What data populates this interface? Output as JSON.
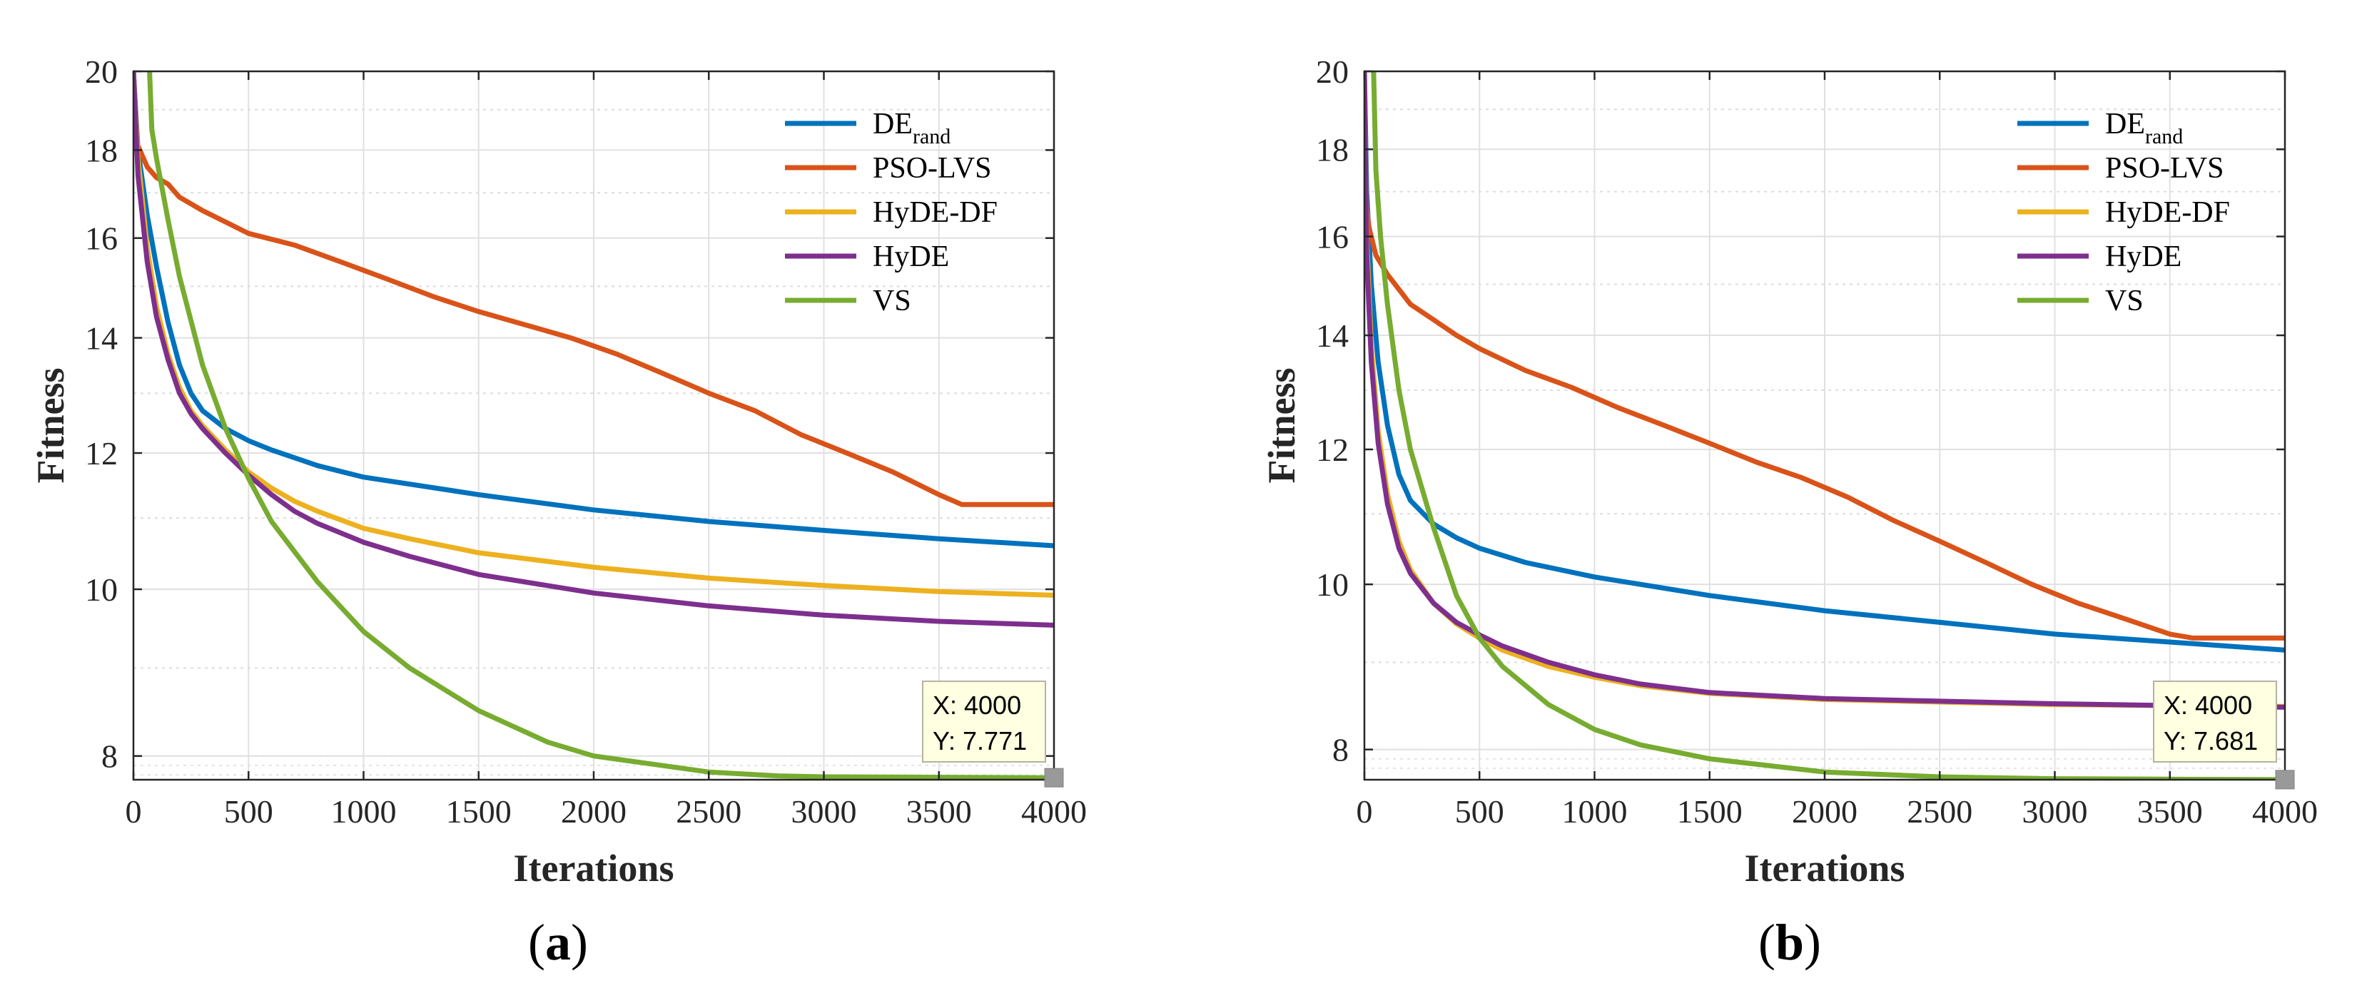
{
  "chart_data": [
    {
      "type": "line",
      "caption": {
        "open": "(",
        "letter": "a",
        "close": ")"
      },
      "xlabel": "Iterations",
      "ylabel": "Fitness",
      "xlim": [
        0,
        4000
      ],
      "ylim": [
        7.75,
        20
      ],
      "yscale": "log",
      "grid": true,
      "legend_position": "top-right",
      "xticks": [
        0,
        500,
        1000,
        1500,
        2000,
        2500,
        3000,
        3500,
        4000
      ],
      "yticks": [
        8,
        10,
        12,
        14,
        16,
        18,
        20
      ],
      "series": [
        {
          "name": "DE",
          "name_sub": "rand",
          "color": "#0072BD",
          "x": [
            0,
            20,
            60,
            100,
            150,
            200,
            250,
            300,
            400,
            500,
            600,
            800,
            1000,
            1500,
            2000,
            2500,
            3000,
            3500,
            4000
          ],
          "y": [
            20,
            18.0,
            16.5,
            15.4,
            14.3,
            13.5,
            13.0,
            12.7,
            12.4,
            12.2,
            12.05,
            11.8,
            11.62,
            11.35,
            11.12,
            10.95,
            10.82,
            10.7,
            10.6
          ]
        },
        {
          "name": "PSO-LVS",
          "color": "#D95319",
          "x": [
            0,
            20,
            60,
            100,
            150,
            200,
            300,
            400,
            500,
            700,
            900,
            1100,
            1300,
            1500,
            1700,
            1900,
            2100,
            2300,
            2500,
            2700,
            2900,
            3100,
            3300,
            3500,
            3600,
            4000
          ],
          "y": [
            18.6,
            18.1,
            17.6,
            17.35,
            17.2,
            16.9,
            16.6,
            16.35,
            16.1,
            15.85,
            15.5,
            15.15,
            14.8,
            14.5,
            14.25,
            14.0,
            13.7,
            13.35,
            13.0,
            12.7,
            12.3,
            12.0,
            11.7,
            11.35,
            11.2,
            11.2
          ]
        },
        {
          "name": "HyDE-DF",
          "color": "#EDB120",
          "x": [
            0,
            20,
            60,
            100,
            150,
            200,
            250,
            300,
            400,
            500,
            600,
            700,
            800,
            1000,
            1200,
            1500,
            2000,
            2500,
            3000,
            3500,
            4000
          ],
          "y": [
            20,
            17.8,
            15.8,
            14.6,
            13.7,
            13.1,
            12.7,
            12.45,
            12.05,
            11.7,
            11.45,
            11.25,
            11.1,
            10.85,
            10.7,
            10.5,
            10.3,
            10.15,
            10.05,
            9.97,
            9.92
          ]
        },
        {
          "name": "HyDE",
          "color": "#7E2F8E",
          "x": [
            0,
            20,
            60,
            100,
            150,
            200,
            250,
            300,
            400,
            500,
            600,
            700,
            800,
            1000,
            1200,
            1500,
            2000,
            2500,
            3000,
            3500,
            4000
          ],
          "y": [
            20,
            17.4,
            15.5,
            14.4,
            13.6,
            13.0,
            12.65,
            12.4,
            12.0,
            11.65,
            11.35,
            11.1,
            10.92,
            10.65,
            10.45,
            10.2,
            9.95,
            9.78,
            9.66,
            9.58,
            9.53
          ]
        },
        {
          "name": "VS",
          "color": "#77AC30",
          "x": [
            70,
            80,
            100,
            150,
            200,
            300,
            400,
            500,
            600,
            800,
            1000,
            1200,
            1500,
            1800,
            2000,
            2500,
            2800,
            3000,
            3500,
            4000
          ],
          "y": [
            20,
            18.5,
            17.8,
            16.4,
            15.2,
            13.5,
            12.4,
            11.6,
            10.95,
            10.1,
            9.45,
            9.0,
            8.5,
            8.15,
            8.0,
            7.83,
            7.79,
            7.78,
            7.775,
            7.771
          ]
        }
      ],
      "datatip": {
        "x_label": "X: 4000",
        "y_label": "Y: 7.771",
        "x": 4000,
        "y": 7.771
      }
    },
    {
      "type": "line",
      "caption": {
        "open": "(",
        "letter": "b",
        "close": ")"
      },
      "xlabel": "Iterations",
      "ylabel": "Fitness",
      "xlim": [
        0,
        4000
      ],
      "ylim": [
        7.68,
        20
      ],
      "yscale": "log",
      "grid": true,
      "legend_position": "top-right",
      "xticks": [
        0,
        500,
        1000,
        1500,
        2000,
        2500,
        3000,
        3500,
        4000
      ],
      "yticks": [
        8,
        10,
        12,
        14,
        16,
        18,
        20
      ],
      "series": [
        {
          "name": "DE",
          "name_sub": "rand",
          "color": "#0072BD",
          "x": [
            0,
            10,
            30,
            60,
            100,
            150,
            200,
            300,
            400,
            500,
            700,
            1000,
            1500,
            2000,
            2500,
            3000,
            3500,
            4000
          ],
          "y": [
            20,
            17.0,
            15.0,
            13.5,
            12.4,
            11.6,
            11.2,
            10.85,
            10.65,
            10.5,
            10.3,
            10.1,
            9.85,
            9.65,
            9.5,
            9.35,
            9.25,
            9.15
          ]
        },
        {
          "name": "PSO-LVS",
          "color": "#D95319",
          "x": [
            0,
            20,
            50,
            100,
            200,
            300,
            400,
            500,
            700,
            900,
            1100,
            1300,
            1500,
            1700,
            1900,
            2100,
            2300,
            2500,
            2700,
            2900,
            3100,
            3300,
            3500,
            3600,
            4000
          ],
          "y": [
            17.0,
            16.2,
            15.6,
            15.2,
            14.6,
            14.3,
            14.0,
            13.75,
            13.35,
            13.05,
            12.7,
            12.4,
            12.1,
            11.8,
            11.55,
            11.25,
            10.9,
            10.6,
            10.3,
            10.0,
            9.75,
            9.55,
            9.35,
            9.3,
            9.3
          ]
        },
        {
          "name": "HyDE-DF",
          "color": "#EDB120",
          "x": [
            0,
            10,
            30,
            60,
            100,
            150,
            200,
            300,
            400,
            500,
            600,
            800,
            1000,
            1200,
            1500,
            2000,
            2500,
            3000,
            3500,
            4000
          ],
          "y": [
            20,
            16.0,
            13.8,
            12.3,
            11.3,
            10.6,
            10.2,
            9.75,
            9.48,
            9.3,
            9.15,
            8.95,
            8.82,
            8.72,
            8.63,
            8.56,
            8.53,
            8.5,
            8.49,
            8.48
          ]
        },
        {
          "name": "HyDE",
          "color": "#7E2F8E",
          "x": [
            0,
            10,
            30,
            60,
            100,
            150,
            200,
            300,
            400,
            500,
            600,
            800,
            1000,
            1200,
            1500,
            2000,
            2500,
            3000,
            3500,
            4000
          ],
          "y": [
            20,
            15.6,
            13.5,
            12.1,
            11.15,
            10.5,
            10.15,
            9.75,
            9.5,
            9.34,
            9.2,
            9.0,
            8.85,
            8.74,
            8.64,
            8.57,
            8.54,
            8.51,
            8.49,
            8.47
          ]
        },
        {
          "name": "VS",
          "color": "#77AC30",
          "x": [
            40,
            50,
            70,
            100,
            150,
            200,
            300,
            400,
            500,
            600,
            800,
            1000,
            1200,
            1500,
            2000,
            2500,
            3000,
            3500,
            4000
          ],
          "y": [
            20,
            17.5,
            16.0,
            14.6,
            13.0,
            12.0,
            10.8,
            9.85,
            9.3,
            8.95,
            8.5,
            8.22,
            8.05,
            7.9,
            7.76,
            7.71,
            7.69,
            7.685,
            7.681
          ]
        }
      ],
      "datatip": {
        "x_label": "X: 4000",
        "y_label": "Y: 7.681",
        "x": 4000,
        "y": 7.681
      }
    }
  ]
}
